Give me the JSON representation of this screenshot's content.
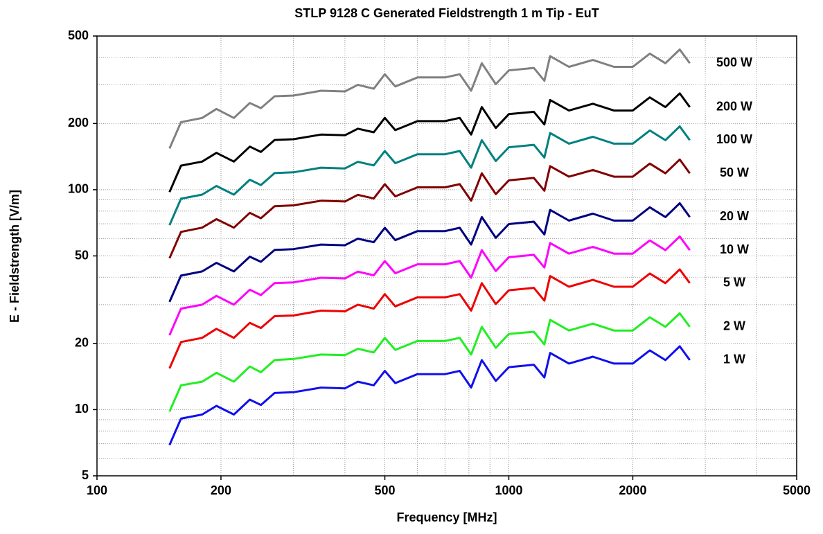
{
  "chart_data": {
    "type": "line",
    "title": "STLP 9128 C Generated Fieldstrength 1 m Tip - EuT",
    "x_label": "Frequency [MHz]",
    "y_label": "E - Fieldstrength [V/m]",
    "log_x": true,
    "log_y": true,
    "grid": true,
    "xlim": [
      100,
      5000
    ],
    "xticks": [
      100,
      200,
      500,
      1000,
      2000,
      5000
    ],
    "xminor": [
      300,
      400,
      600,
      700,
      800,
      900,
      3000,
      4000
    ],
    "ylim": [
      5,
      500
    ],
    "yticks": [
      5,
      10,
      20,
      50,
      100,
      200,
      500
    ],
    "yminor": [
      6,
      7,
      8,
      9,
      30,
      40,
      60,
      70,
      80,
      90,
      300,
      400
    ],
    "x": [
      150,
      160,
      180,
      195,
      215,
      235,
      250,
      270,
      300,
      350,
      400,
      430,
      470,
      500,
      530,
      600,
      700,
      760,
      810,
      860,
      930,
      1000,
      1150,
      1220,
      1260,
      1400,
      1600,
      1800,
      2000,
      2200,
      2400,
      2600,
      2750
    ],
    "series": [
      {
        "name": "500 W",
        "color": "#808080",
        "values": [
          154,
          203,
          212,
          233,
          212,
          248,
          235,
          266,
          268,
          282,
          280,
          300,
          288,
          335,
          295,
          324,
          324,
          335,
          282,
          376,
          302,
          349,
          358,
          313,
          405,
          362,
          389,
          362,
          362,
          416,
          376,
          434,
          376
        ]
      },
      {
        "name": "200 W",
        "color": "#000000",
        "values": [
          97.6,
          128.7,
          134.3,
          147.1,
          134.3,
          157.0,
          148.5,
          168.3,
          169.7,
          178.2,
          176.8,
          189.5,
          182.4,
          212.1,
          186.6,
          205.0,
          205.0,
          212.1,
          178.2,
          237.6,
          190.9,
          220.6,
          226.2,
          198.0,
          255.9,
          229.1,
          246.0,
          229.1,
          229.1,
          263.0,
          237.6,
          274.3,
          237.6
        ]
      },
      {
        "name": "100 W",
        "color": "#008080",
        "values": [
          69,
          91,
          95,
          104,
          95,
          111,
          105,
          119,
          120,
          126,
          125,
          134,
          129,
          150,
          132,
          145,
          145,
          150,
          126,
          168,
          135,
          156,
          160,
          140,
          181,
          162,
          174,
          162,
          162,
          186,
          168,
          194,
          168
        ]
      },
      {
        "name": "50 W",
        "color": "#800000",
        "values": [
          48.8,
          64.3,
          67.2,
          73.5,
          67.2,
          78.5,
          74.2,
          84.1,
          84.9,
          89.1,
          88.4,
          94.8,
          91.2,
          106,
          93.3,
          102.5,
          102.5,
          106,
          89.1,
          118.8,
          95.5,
          110.3,
          113.1,
          99.0,
          128.0,
          114.6,
          123.0,
          114.6,
          114.6,
          131.5,
          118.8,
          137.2,
          118.8
        ]
      },
      {
        "name": "20 W",
        "color": "#000080",
        "values": [
          30.9,
          40.7,
          42.5,
          46.5,
          42.5,
          49.6,
          47.0,
          53.2,
          53.7,
          56.3,
          55.9,
          59.9,
          57.7,
          67.1,
          59.0,
          64.8,
          64.8,
          67.1,
          56.3,
          75.1,
          60.4,
          69.8,
          71.6,
          62.6,
          80.9,
          72.4,
          77.8,
          72.4,
          72.4,
          83.2,
          75.1,
          86.8,
          75.1
        ]
      },
      {
        "name": "10 W",
        "color": "#ff00ff",
        "values": [
          21.8,
          28.8,
          30.0,
          32.9,
          30.0,
          35.1,
          33.2,
          37.6,
          37.9,
          39.8,
          39.5,
          42.4,
          40.8,
          47.4,
          41.7,
          45.8,
          45.8,
          47.4,
          39.8,
          53.1,
          42.7,
          49.3,
          50.6,
          44.3,
          57.2,
          51.2,
          55.0,
          51.2,
          51.2,
          58.8,
          53.1,
          61.3,
          53.1
        ]
      },
      {
        "name": "5 W",
        "color": "#ee0000",
        "values": [
          15.4,
          20.3,
          21.2,
          23.3,
          21.2,
          24.8,
          23.5,
          26.6,
          26.8,
          28.2,
          28.0,
          30.0,
          28.8,
          33.5,
          29.5,
          32.4,
          32.4,
          33.5,
          28.2,
          37.6,
          30.2,
          34.9,
          35.8,
          31.3,
          40.5,
          36.2,
          38.9,
          36.2,
          36.2,
          41.6,
          37.6,
          43.4,
          37.6
        ]
      },
      {
        "name": "2 W",
        "color": "#22ee22",
        "values": [
          9.8,
          12.9,
          13.4,
          14.7,
          13.4,
          15.7,
          14.8,
          16.8,
          17.0,
          17.8,
          17.7,
          18.9,
          18.2,
          21.2,
          18.7,
          20.5,
          20.5,
          21.2,
          17.8,
          23.8,
          19.1,
          22.1,
          22.6,
          19.8,
          25.6,
          22.9,
          24.6,
          22.9,
          22.9,
          26.3,
          23.8,
          27.4,
          23.8
        ]
      },
      {
        "name": "1 W",
        "color": "#1010ee",
        "values": [
          6.9,
          9.1,
          9.5,
          10.4,
          9.5,
          11.1,
          10.5,
          11.9,
          12.0,
          12.6,
          12.5,
          13.4,
          12.9,
          15.0,
          13.2,
          14.5,
          14.5,
          15.0,
          12.6,
          16.8,
          13.5,
          15.6,
          16.0,
          14.0,
          18.1,
          16.2,
          17.4,
          16.2,
          16.2,
          18.6,
          16.8,
          19.4,
          16.8
        ]
      }
    ]
  }
}
